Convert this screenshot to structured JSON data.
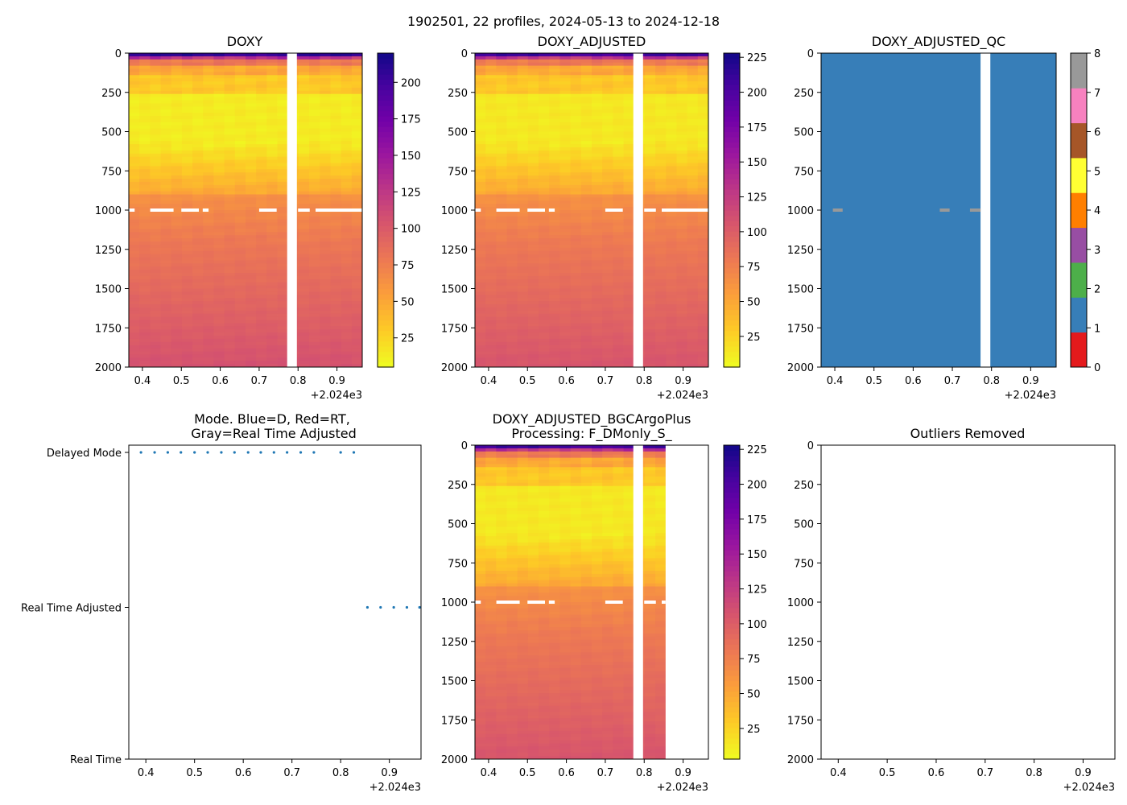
{
  "suptitle": "1902501, 22 profiles, 2024-05-13 to 2024-12-18",
  "colors": {
    "plasma_r": [
      "#f0f921",
      "#fdca26",
      "#fb9f3a",
      "#ed7953",
      "#d8576b",
      "#bd3786",
      "#9c179e",
      "#7201a8",
      "#46039f",
      "#0d0887"
    ],
    "qc_palette": [
      "#e41a1c",
      "#377eb8",
      "#4daf4a",
      "#984ea3",
      "#ff7f00",
      "#ffff33",
      "#a65628",
      "#f781bf",
      "#999999"
    ],
    "mode_marker": "#1f77b4"
  },
  "chart_data": [
    {
      "id": "doxy",
      "type": "heatmap",
      "title": "DOXY",
      "xlim": [
        2024.365,
        2024.965
      ],
      "ylim": [
        2000,
        0
      ],
      "x_ticks": [
        0.4,
        0.5,
        0.6,
        0.7,
        0.8,
        0.9
      ],
      "x_tick_labels": [
        "0.4",
        "0.5",
        "0.6",
        "0.7",
        "0.8",
        "0.9"
      ],
      "x_offset_label": "+2.024e3",
      "y_ticks": [
        0,
        250,
        500,
        750,
        1000,
        1250,
        1500,
        1750,
        2000
      ],
      "y_tick_labels": [
        "0",
        "250",
        "500",
        "750",
        "1000",
        "1250",
        "1500",
        "1750",
        "2000"
      ],
      "data_gap_x": [
        2024.772,
        2024.797
      ],
      "missing_rows_at_depth": 1000,
      "profile_columns": 20,
      "colorbar": {
        "cmap": "plasma_r",
        "range": [
          5,
          220
        ],
        "ticks": [
          25,
          50,
          75,
          100,
          125,
          150,
          175,
          200
        ],
        "tick_labels": [
          "25",
          "50",
          "75",
          "100",
          "125",
          "150",
          "175",
          "200"
        ]
      }
    },
    {
      "id": "doxy-adjusted",
      "type": "heatmap",
      "title": "DOXY_ADJUSTED",
      "xlim": [
        2024.365,
        2024.965
      ],
      "ylim": [
        2000,
        0
      ],
      "x_ticks": [
        0.4,
        0.5,
        0.6,
        0.7,
        0.8,
        0.9
      ],
      "x_tick_labels": [
        "0.4",
        "0.5",
        "0.6",
        "0.7",
        "0.8",
        "0.9"
      ],
      "x_offset_label": "+2.024e3",
      "y_ticks": [
        0,
        250,
        500,
        750,
        1000,
        1250,
        1500,
        1750,
        2000
      ],
      "y_tick_labels": [
        "0",
        "250",
        "500",
        "750",
        "1000",
        "1250",
        "1500",
        "1750",
        "2000"
      ],
      "data_gap_x": [
        2024.772,
        2024.797
      ],
      "missing_rows_at_depth": 1000,
      "profile_columns": 20,
      "colorbar": {
        "cmap": "plasma_r",
        "range": [
          3,
          228
        ],
        "ticks": [
          25,
          50,
          75,
          100,
          125,
          150,
          175,
          200,
          225
        ],
        "tick_labels": [
          "25",
          "50",
          "75",
          "100",
          "125",
          "150",
          "175",
          "200",
          "225"
        ]
      }
    },
    {
      "id": "doxy-adjusted-qc",
      "type": "heatmap",
      "title": "DOXY_ADJUSTED_QC",
      "xlim": [
        2024.365,
        2024.965
      ],
      "ylim": [
        2000,
        0
      ],
      "x_ticks": [
        0.4,
        0.5,
        0.6,
        0.7,
        0.8,
        0.9
      ],
      "x_tick_labels": [
        "0.4",
        "0.5",
        "0.6",
        "0.7",
        "0.8",
        "0.9"
      ],
      "x_offset_label": "+2.024e3",
      "y_ticks": [
        0,
        250,
        500,
        750,
        1000,
        1250,
        1500,
        1750,
        2000
      ],
      "y_tick_labels": [
        "0",
        "250",
        "500",
        "750",
        "1000",
        "1250",
        "1500",
        "1750",
        "2000"
      ],
      "data_gap_x": [
        2024.772,
        2024.797
      ],
      "background_flag": 1,
      "flag_marks": [
        {
          "x": [
            2024.395,
            2024.42
          ],
          "depth": 1000,
          "flag": 8
        },
        {
          "x": [
            2024.668,
            2024.693
          ],
          "depth": 1000,
          "flag": 8
        },
        {
          "x": [
            2024.745,
            2024.772
          ],
          "depth": 1000,
          "flag": 8
        }
      ],
      "colorbar": {
        "type": "discrete",
        "range": [
          0,
          8
        ],
        "ticks": [
          0,
          1,
          2,
          3,
          4,
          5,
          6,
          7,
          8
        ],
        "tick_labels": [
          "0",
          "1",
          "2",
          "3",
          "4",
          "5",
          "6",
          "7",
          "8"
        ]
      }
    },
    {
      "id": "mode",
      "type": "scatter",
      "title_lines": [
        "Mode. Blue=D, Red=RT,",
        "Gray=Real Time Adjusted"
      ],
      "xlim": [
        2024.365,
        2024.965
      ],
      "x_ticks": [
        0.4,
        0.5,
        0.6,
        0.7,
        0.8,
        0.9
      ],
      "x_tick_labels": [
        "0.4",
        "0.5",
        "0.6",
        "0.7",
        "0.8",
        "0.9"
      ],
      "x_offset_label": "+2.024e3",
      "y_categories": [
        "Real Time",
        "Real Time Adjusted",
        "Delayed Mode"
      ],
      "points": [
        {
          "x": 2024.39,
          "mode": "Delayed Mode"
        },
        {
          "x": 2024.418,
          "mode": "Delayed Mode"
        },
        {
          "x": 2024.445,
          "mode": "Delayed Mode"
        },
        {
          "x": 2024.472,
          "mode": "Delayed Mode"
        },
        {
          "x": 2024.5,
          "mode": "Delayed Mode"
        },
        {
          "x": 2024.527,
          "mode": "Delayed Mode"
        },
        {
          "x": 2024.555,
          "mode": "Delayed Mode"
        },
        {
          "x": 2024.582,
          "mode": "Delayed Mode"
        },
        {
          "x": 2024.61,
          "mode": "Delayed Mode"
        },
        {
          "x": 2024.636,
          "mode": "Delayed Mode"
        },
        {
          "x": 2024.663,
          "mode": "Delayed Mode"
        },
        {
          "x": 2024.69,
          "mode": "Delayed Mode"
        },
        {
          "x": 2024.718,
          "mode": "Delayed Mode"
        },
        {
          "x": 2024.745,
          "mode": "Delayed Mode"
        },
        {
          "x": 2024.8,
          "mode": "Delayed Mode"
        },
        {
          "x": 2024.827,
          "mode": "Delayed Mode"
        },
        {
          "x": 2024.855,
          "mode": "Real Time Adjusted"
        },
        {
          "x": 2024.882,
          "mode": "Real Time Adjusted"
        },
        {
          "x": 2024.909,
          "mode": "Real Time Adjusted"
        },
        {
          "x": 2024.936,
          "mode": "Real Time Adjusted"
        },
        {
          "x": 2024.962,
          "mode": "Real Time Adjusted"
        }
      ]
    },
    {
      "id": "doxy-adjusted-bgcargoplus",
      "type": "heatmap",
      "title_lines": [
        "DOXY_ADJUSTED_BGCArgoPlus",
        "Processing: F_DMonly_S_"
      ],
      "xlim": [
        2024.365,
        2024.965
      ],
      "ylim": [
        2000,
        0
      ],
      "x_ticks": [
        0.4,
        0.5,
        0.6,
        0.7,
        0.8,
        0.9
      ],
      "x_tick_labels": [
        "0.4",
        "0.5",
        "0.6",
        "0.7",
        "0.8",
        "0.9"
      ],
      "x_offset_label": "+2.024e3",
      "y_ticks": [
        0,
        250,
        500,
        750,
        1000,
        1250,
        1500,
        1750,
        2000
      ],
      "y_tick_labels": [
        "0",
        "250",
        "500",
        "750",
        "1000",
        "1250",
        "1500",
        "1750",
        "2000"
      ],
      "data_gap_x": [
        2024.772,
        2024.797
      ],
      "data_end_x": 2024.855,
      "missing_rows_at_depth": 1000,
      "profile_columns": 20,
      "colorbar": {
        "cmap": "plasma_r",
        "range": [
          3,
          228
        ],
        "ticks": [
          25,
          50,
          75,
          100,
          125,
          150,
          175,
          200,
          225
        ],
        "tick_labels": [
          "25",
          "50",
          "75",
          "100",
          "125",
          "150",
          "175",
          "200",
          "225"
        ]
      }
    },
    {
      "id": "outliers-removed",
      "type": "scatter",
      "title": "Outliers Removed",
      "xlim": [
        2024.365,
        2024.965
      ],
      "ylim": [
        2000,
        0
      ],
      "x_ticks": [
        0.4,
        0.5,
        0.6,
        0.7,
        0.8,
        0.9
      ],
      "x_tick_labels": [
        "0.4",
        "0.5",
        "0.6",
        "0.7",
        "0.8",
        "0.9"
      ],
      "x_offset_label": "+2.024e3",
      "y_ticks": [
        0,
        250,
        500,
        750,
        1000,
        1250,
        1500,
        1750,
        2000
      ],
      "y_tick_labels": [
        "0",
        "250",
        "500",
        "750",
        "1000",
        "1250",
        "1500",
        "1750",
        "2000"
      ],
      "points": []
    }
  ]
}
